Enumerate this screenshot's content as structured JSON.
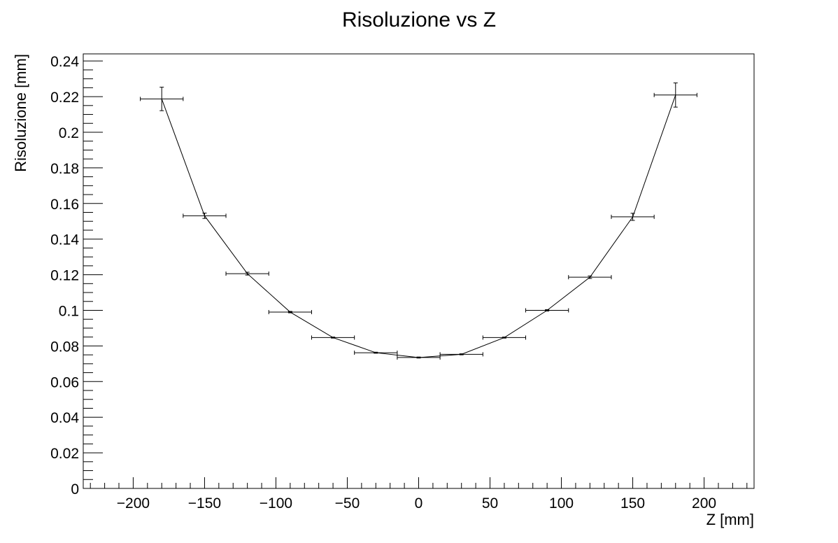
{
  "chart_data": {
    "type": "scatter",
    "title": "Risoluzione vs Z",
    "xlabel": "Z [mm]",
    "ylabel": "Risoluzione [mm]",
    "xlim": [
      -235,
      235
    ],
    "ylim": [
      0,
      0.244
    ],
    "x_ticks": [
      -200,
      -150,
      -100,
      -50,
      0,
      50,
      100,
      150,
      200
    ],
    "x_tick_labels": [
      "−200",
      "−150",
      "−100",
      "−50",
      "0",
      "50",
      "100",
      "150",
      "200"
    ],
    "y_ticks": [
      0,
      0.02,
      0.04,
      0.06,
      0.08,
      0.1,
      0.12,
      0.14,
      0.16,
      0.18,
      0.2,
      0.22,
      0.24
    ],
    "y_tick_labels": [
      "0",
      "0.02",
      "0.04",
      "0.06",
      "0.08",
      "0.1",
      "0.12",
      "0.14",
      "0.16",
      "0.18",
      "0.2",
      "0.22",
      "0.24"
    ],
    "grid": false,
    "series": [
      {
        "x": [
          -180,
          -150,
          -120,
          -90,
          -60,
          -30,
          0,
          30,
          60,
          90,
          120,
          150,
          180
        ],
        "y": [
          0.2187,
          0.1531,
          0.1206,
          0.099,
          0.0847,
          0.0762,
          0.0735,
          0.0753,
          0.0847,
          0.1,
          0.1186,
          0.1525,
          0.2209
        ],
        "x_err": [
          15,
          15,
          15,
          15,
          15,
          15,
          15,
          15,
          15,
          15,
          15,
          15,
          15
        ],
        "y_err": [
          0.0066,
          0.0015,
          0.0008,
          0.0004,
          0.0003,
          0.0003,
          0.0003,
          0.0003,
          0.0003,
          0.0004,
          0.0007,
          0.002,
          0.0068
        ]
      }
    ]
  }
}
